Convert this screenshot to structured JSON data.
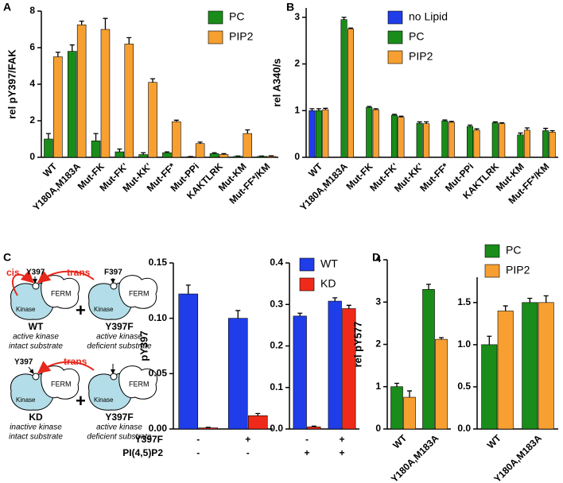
{
  "chart_data": [
    {
      "type": "bar",
      "panel": "A",
      "ylabel": "rel pY397/FAK",
      "categories": [
        "WT",
        "Y180A,M183A",
        "Mut-FK",
        "Mut-FK'",
        "Mut-KK'",
        "Mut-FF*",
        "Mut-PPi",
        "KAKTLRK",
        "Mut-KM",
        "Mut-FF*/KM"
      ],
      "series": [
        {
          "name": "PC",
          "color": "#1a8c1a",
          "values": [
            1.0,
            5.8,
            0.9,
            0.3,
            0.15,
            0.25,
            0.02,
            0.2,
            0.05,
            0.05
          ],
          "errors": [
            0.3,
            0.35,
            0.4,
            0.15,
            0.1,
            0.05,
            0.02,
            0.05,
            0.02,
            0.02
          ]
        },
        {
          "name": "PIP2",
          "color": "#f7a031",
          "values": [
            5.5,
            7.25,
            7.0,
            6.2,
            4.1,
            1.95,
            0.75,
            0.15,
            1.3,
            0.05
          ],
          "errors": [
            0.25,
            0.2,
            0.6,
            0.35,
            0.2,
            0.08,
            0.08,
            0.05,
            0.2,
            0.03
          ]
        }
      ],
      "ylim": [
        0,
        8
      ],
      "yticks": [
        0,
        2,
        4,
        6,
        8
      ],
      "legend": "upper right"
    },
    {
      "type": "bar",
      "panel": "B",
      "ylabel": "rel A340/s",
      "categories": [
        "WT",
        "Y180A,M183A",
        "Mut-FK",
        "Mut-FK'",
        "Mut-KK'",
        "Mut-FF*",
        "Mut-PPi",
        "KAKTLRK",
        "Mut-KM",
        "Mut-FF*/KM"
      ],
      "series": [
        {
          "name": "no Lipid",
          "color": "#1f3de8",
          "values": [
            1.0,
            null,
            null,
            null,
            null,
            null,
            null,
            null,
            null,
            null
          ],
          "errors": [
            0.04,
            null,
            null,
            null,
            null,
            null,
            null,
            null,
            null,
            null
          ]
        },
        {
          "name": "PC",
          "color": "#1a8c1a",
          "values": [
            1.0,
            2.95,
            1.07,
            0.9,
            0.73,
            0.78,
            0.66,
            0.74,
            0.48,
            0.57
          ],
          "errors": [
            0.04,
            0.05,
            0.02,
            0.02,
            0.03,
            0.02,
            0.03,
            0.02,
            0.04,
            0.05
          ]
        },
        {
          "name": "PIP2",
          "color": "#f7a031",
          "values": [
            1.02,
            2.75,
            1.02,
            0.86,
            0.72,
            0.75,
            0.58,
            0.72,
            0.58,
            0.54
          ],
          "errors": [
            0.03,
            0.02,
            0.02,
            0.02,
            0.04,
            0.02,
            0.03,
            0.02,
            0.05,
            0.03
          ]
        }
      ],
      "ylim": [
        0,
        3.2
      ],
      "yticks": [
        0,
        1,
        2,
        3
      ],
      "legend": "upper right"
    },
    {
      "type": "bar",
      "panel": "C",
      "ylabel": "pY397",
      "series": [
        {
          "name": "WT",
          "color": "#1f3de8",
          "values": [
            0.122,
            0.1
          ],
          "errors": [
            0.008,
            0.007
          ]
        },
        {
          "name": "KD",
          "color": "#f02a1a",
          "values": [
            0.001,
            0.012
          ],
          "errors": [
            0.0005,
            0.002
          ]
        }
      ],
      "condition_rows": [
        {
          "name": "Y397F",
          "signs": [
            "-",
            "+"
          ]
        },
        {
          "name": "PI(4,5)P2",
          "signs": [
            "-",
            "-"
          ]
        }
      ],
      "ylim": [
        0,
        0.15
      ],
      "yticks": [
        {
          "value": 0,
          "label": "0.00"
        },
        {
          "value": 0.05,
          "label": "0.05"
        },
        {
          "value": 0.1,
          "label": "0.10"
        },
        {
          "value": 0.15,
          "label": "0.15"
        }
      ],
      "legend": "none"
    },
    {
      "type": "bar",
      "series": [
        {
          "name": "WT",
          "color": "#1f3de8",
          "values": [
            0.272,
            0.308
          ],
          "errors": [
            0.007,
            0.008
          ]
        },
        {
          "name": "KD",
          "color": "#f02a1a",
          "values": [
            0.005,
            0.29
          ],
          "errors": [
            0.002,
            0.008
          ]
        }
      ],
      "condition_rows": [
        {
          "signs": [
            "-",
            "+"
          ]
        },
        {
          "signs": [
            "+",
            "+"
          ]
        }
      ],
      "ylim": [
        0,
        0.4
      ],
      "yticks": [
        {
          "value": 0,
          "label": "0.0"
        },
        {
          "value": 0.1,
          "label": "0.1"
        },
        {
          "value": 0.2,
          "label": "0.2"
        },
        {
          "value": 0.3,
          "label": "0.3"
        },
        {
          "value": 0.4,
          "label": "0.4"
        }
      ],
      "legend": "upper right"
    },
    {
      "type": "bar",
      "panel": "D",
      "ylabel": "rel pY577",
      "categories": [
        "WT",
        "Y180A,M183A"
      ],
      "series": [
        {
          "name": "PC",
          "color": "#1a8c1a",
          "values": [
            1.0,
            3.3
          ],
          "errors": [
            0.08,
            0.12
          ]
        },
        {
          "name": "PIP2",
          "color": "#f7a031",
          "values": [
            0.75,
            2.12
          ],
          "errors": [
            0.15,
            0.04
          ]
        }
      ],
      "ylim": [
        0,
        4
      ],
      "yticks": [
        0,
        1,
        2,
        3,
        4
      ],
      "legend": "none"
    },
    {
      "type": "bar",
      "categories": [
        "WT",
        "Y180A,M183A"
      ],
      "series": [
        {
          "name": "PC",
          "color": "#1a8c1a",
          "values": [
            1.0,
            1.5
          ],
          "errors": [
            0.1,
            0.05
          ]
        },
        {
          "name": "PIP2",
          "color": "#f7a031",
          "values": [
            1.4,
            1.5
          ],
          "errors": [
            0.06,
            0.08
          ]
        }
      ],
      "ylim": [
        0,
        1.8
      ],
      "yticks": [
        {
          "value": 0,
          "label": "0.0"
        },
        {
          "value": 0.5,
          "label": "0.5"
        },
        {
          "value": 1,
          "label": "1.0"
        },
        {
          "value": 1.5,
          "label": "1.5"
        }
      ],
      "legend": "upper right"
    }
  ],
  "diagram": {
    "top": {
      "cis": "cis",
      "site": "Y397",
      "trans": "trans",
      "partner_site": "F397",
      "kinase": "Kinase",
      "ferm": "FERM",
      "partner_kinase": "Kinase",
      "partner_ferm": "FERM",
      "plus": "+",
      "left_name": "WT",
      "left_lines": [
        "active kinase",
        "intact substrate"
      ],
      "right_name": "Y397F",
      "right_lines": [
        "active kinase",
        "deficient substrate"
      ]
    },
    "bottom": {
      "site": "Y397",
      "trans": "trans",
      "kinase": "Kinase",
      "ferm": "FERM",
      "partner_kinase": "Kinase",
      "partner_ferm": "FERM",
      "plus": "+",
      "left_name": "KD",
      "left_lines": [
        "inactive kinase",
        "intact substrate"
      ],
      "right_name": "Y397F",
      "right_lines": [
        "active kinase",
        "deficient substrate"
      ]
    }
  }
}
